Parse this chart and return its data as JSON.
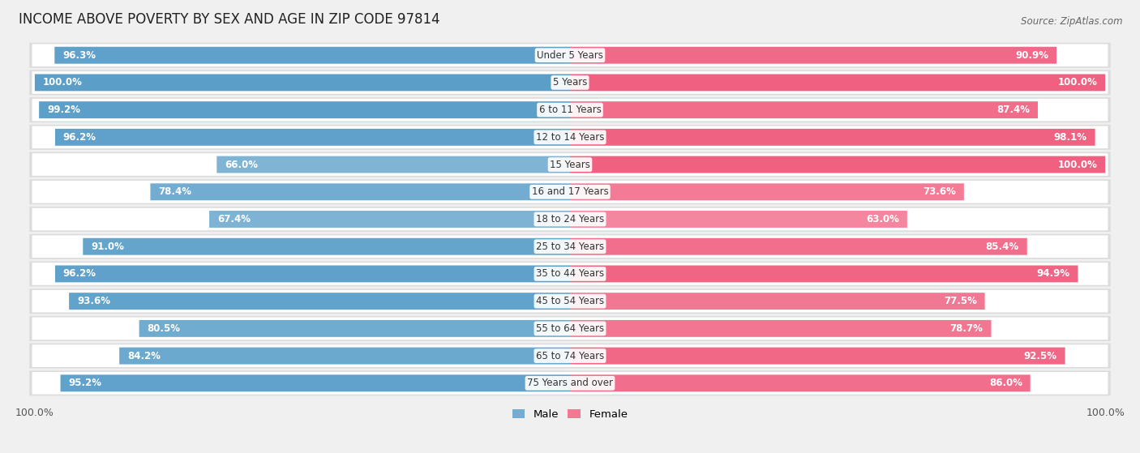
{
  "title": "INCOME ABOVE POVERTY BY SEX AND AGE IN ZIP CODE 97814",
  "source": "Source: ZipAtlas.com",
  "categories": [
    "Under 5 Years",
    "5 Years",
    "6 to 11 Years",
    "12 to 14 Years",
    "15 Years",
    "16 and 17 Years",
    "18 to 24 Years",
    "25 to 34 Years",
    "35 to 44 Years",
    "45 to 54 Years",
    "55 to 64 Years",
    "65 to 74 Years",
    "75 Years and over"
  ],
  "male_values": [
    96.3,
    100.0,
    99.2,
    96.2,
    66.0,
    78.4,
    67.4,
    91.0,
    96.2,
    93.6,
    80.5,
    84.2,
    95.2
  ],
  "female_values": [
    90.9,
    100.0,
    87.4,
    98.1,
    100.0,
    73.6,
    63.0,
    85.4,
    94.9,
    77.5,
    78.7,
    92.5,
    86.0
  ],
  "male_color_full": "#5b9fc9",
  "male_color_light": "#b8d5ea",
  "female_color_full": "#f06080",
  "female_color_light": "#f8c0cf",
  "bg_color": "#f0f0f0",
  "bar_bg_color": "#ffffff",
  "row_bg_color": "#e8e8e8",
  "title_fontsize": 12,
  "label_fontsize": 8.5,
  "tick_fontsize": 9,
  "source_fontsize": 8.5,
  "legend_fontsize": 9.5,
  "value_label_fontsize": 8.5
}
